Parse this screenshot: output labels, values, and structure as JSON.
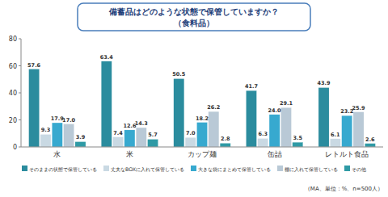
{
  "chart_data": {
    "type": "bar",
    "title": "備蓄品はどのような状態で保管していますか？",
    "subtitle": "（食料品）",
    "annotations": [
      "（MA、単位：%、n=500人）"
    ],
    "categories": [
      "水",
      "米",
      "カップ麺",
      "缶詰",
      "レトルト食品"
    ],
    "series": [
      {
        "name": "そのままの状態で保管している",
        "color": "#2b8c9e",
        "values": [
          57.6,
          63.4,
          50.5,
          41.7,
          43.9
        ],
        "value_labels": [
          "57.6",
          "63.4",
          "50.5",
          "41.7",
          "43.9"
        ]
      },
      {
        "name": "丈夫なBOXに入れて保管している",
        "color": "#c9d9e3",
        "values": [
          9.3,
          7.4,
          7.0,
          6.3,
          6.1
        ],
        "value_labels": [
          "9.3",
          "7.4",
          "7.0",
          "6.3",
          "6.1"
        ]
      },
      {
        "name": "大きな袋にまとめて保管している",
        "color": "#37a9cf",
        "values": [
          17.9,
          12.6,
          18.2,
          24.0,
          23.2
        ],
        "value_labels": [
          "17.9",
          "12.6",
          "18.2",
          "24.0",
          "23.2"
        ]
      },
      {
        "name": "棚に入れて保管している",
        "color": "#b9c9d6",
        "values": [
          17.0,
          14.3,
          26.2,
          29.1,
          25.9
        ],
        "value_labels": [
          "17.0",
          "14.3",
          "26.2",
          "29.1",
          "25.9"
        ]
      },
      {
        "name": "その他",
        "color": "#2f9aa5",
        "values": [
          3.9,
          5.7,
          2.8,
          3.5,
          2.6
        ],
        "value_labels": [
          "3.9",
          "5.7",
          "2.8",
          "3.5",
          "2.6"
        ]
      }
    ],
    "ylim": [
      0,
      80
    ],
    "yticks": [
      0,
      20,
      40,
      60,
      80
    ],
    "grid": false,
    "legend": "bottom",
    "data_labels": true
  }
}
